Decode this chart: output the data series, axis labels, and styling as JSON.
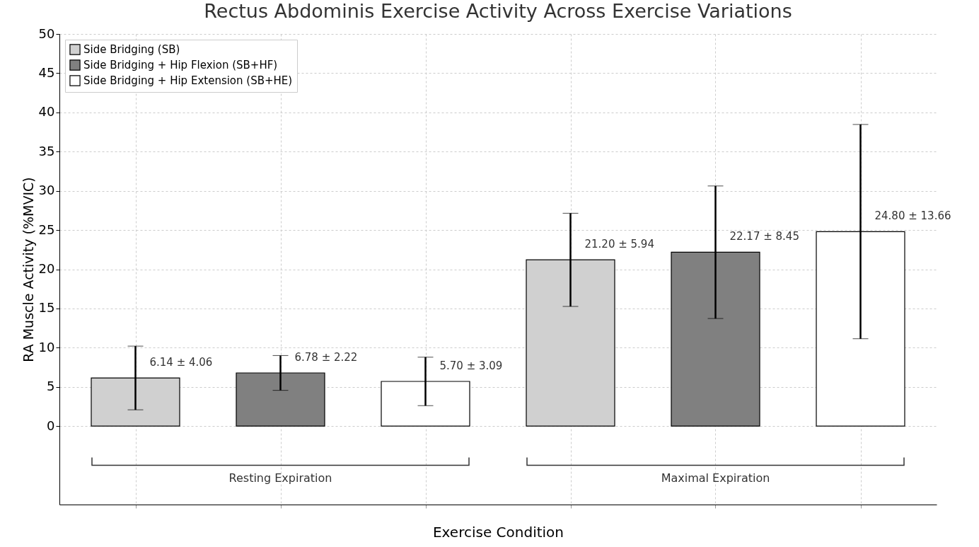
{
  "chart_data": {
    "type": "bar",
    "title": "Rectus Abdominis Exercise Activity Across Exercise Variations",
    "xlabel": "Exercise Condition",
    "ylabel": "RA Muscle Activity (%MVIC)",
    "categories": [
      null,
      null,
      null,
      null,
      null,
      null
    ],
    "series": [
      {
        "name": "Side Bridging (SB)",
        "color": "#d0d0d0",
        "values": [
          6.14,
          null,
          null,
          21.2,
          null,
          null
        ],
        "errors": [
          4.06,
          null,
          null,
          5.94,
          null,
          null
        ],
        "value_labels": [
          "6.14 ± 4.06",
          null,
          null,
          "21.20 ± 5.94",
          null,
          null
        ]
      },
      {
        "name": "Side Bridging + Hip Flexion (SB+HF)",
        "color": "#808080",
        "values": [
          null,
          6.78,
          null,
          null,
          22.17,
          null
        ],
        "errors": [
          null,
          2.22,
          null,
          null,
          8.45,
          null
        ],
        "value_labels": [
          null,
          "6.78 ± 2.22",
          null,
          null,
          "22.17 ± 8.45",
          null
        ]
      },
      {
        "name": "Side Bridging + Hip Extension (SB+HE)",
        "color": "#ffffff",
        "values": [
          null,
          null,
          5.7,
          null,
          null,
          24.8
        ],
        "errors": [
          null,
          null,
          3.09,
          null,
          null,
          13.66
        ],
        "value_labels": [
          null,
          null,
          "5.70 ± 3.09",
          null,
          null,
          "24.80 ± 13.66"
        ]
      }
    ],
    "annotations": [
      "Resting Expiration",
      "Maximal Expiration"
    ],
    "ylim": [
      -10,
      50
    ],
    "yticks": [
      0,
      5,
      10,
      15,
      20,
      25,
      30,
      35,
      40,
      45,
      50
    ],
    "grid": true,
    "legend": "top left"
  }
}
